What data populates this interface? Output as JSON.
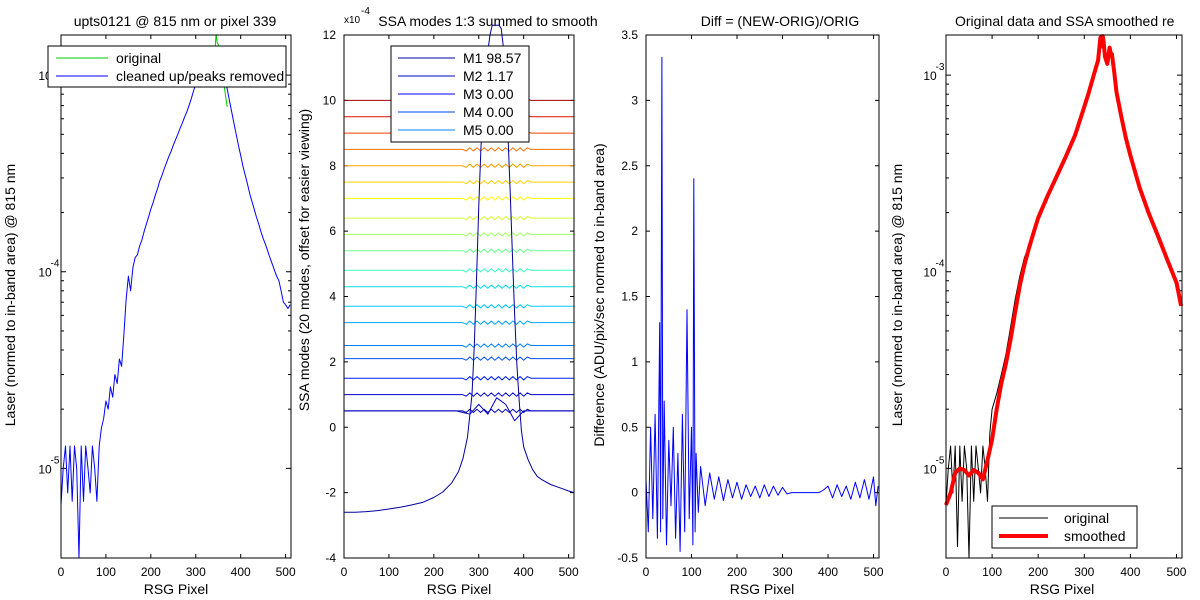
{
  "chart_data": [
    {
      "type": "line",
      "title": "upts0121 @ 815 nm or pixel 339",
      "xlabel": "RSG Pixel",
      "ylabel": "Laser (normed to in-band area) @ 815 nm",
      "xlim": [
        0,
        512
      ],
      "xticks": [
        0,
        100,
        200,
        300,
        400,
        500
      ],
      "ylim": [
        3.5e-06,
        0.0016
      ],
      "yscale": "log",
      "yticks": [
        {
          "v": 1e-05,
          "label": "10"
        },
        {
          "v": 0.0001,
          "label": "10"
        },
        {
          "v": 0.001,
          "label": "10"
        }
      ],
      "ytick_exponents": [
        "-5",
        "-4",
        "-3"
      ],
      "legend": {
        "placement": "top",
        "entries": [
          "original",
          "cleaned up/peaks removed"
        ]
      },
      "series": [
        {
          "name": "original",
          "color": "#00c800",
          "x": [
            330,
            335,
            340,
            343,
            345,
            346,
            347,
            348,
            350,
            352,
            355,
            358,
            360,
            362,
            365,
            368,
            370
          ],
          "values": [
            0.00109,
            0.0012,
            0.00132,
            0.00137,
            0.0016,
            0.0016,
            0.0015,
            0.00145,
            0.00144,
            0.00138,
            0.00128,
            0.00118,
            0.00106,
            0.00094,
            0.00082,
            0.00074,
            0.00069
          ]
        },
        {
          "name": "cleaned up/peaks removed",
          "color": "#0000ff",
          "x": [
            0,
            5,
            10,
            15,
            20,
            25,
            30,
            35,
            40,
            45,
            50,
            55,
            60,
            65,
            70,
            75,
            80,
            85,
            90,
            95,
            100,
            105,
            110,
            115,
            120,
            125,
            130,
            135,
            140,
            145,
            150,
            155,
            160,
            165,
            170,
            175,
            180,
            185,
            190,
            195,
            200,
            205,
            210,
            215,
            220,
            225,
            230,
            235,
            240,
            245,
            250,
            255,
            260,
            265,
            270,
            275,
            280,
            285,
            290,
            295,
            300,
            305,
            310,
            315,
            320,
            325,
            330,
            335,
            340,
            345,
            350,
            355,
            360,
            365,
            370,
            375,
            380,
            385,
            390,
            395,
            400,
            405,
            410,
            415,
            420,
            425,
            430,
            435,
            440,
            445,
            450,
            455,
            460,
            465,
            470,
            475,
            480,
            485,
            490,
            495,
            500,
            505,
            510
          ],
          "values": [
            6.5e-06,
            1e-05,
            1.3e-05,
            7.5e-06,
            1.3e-05,
            6.8e-06,
            1.3e-05,
            1e-05,
            3.5e-06,
            1.3e-05,
            6.8e-06,
            1.3e-05,
            1e-05,
            7.5e-06,
            1.3e-05,
            1e-05,
            6.8e-06,
            1.3e-05,
            1.6e-05,
            1.8e-05,
            2.2e-05,
            2e-05,
            2.6e-05,
            2.3e-05,
            3e-05,
            2.7e-05,
            3.6e-05,
            3.3e-05,
            4.8e-05,
            7.2e-05,
            9.5e-05,
            8e-05,
            0.000105,
            0.000118,
            0.000122,
            0.000135,
            0.000145,
            0.00016,
            0.000175,
            0.00019,
            0.000208,
            0.000225,
            0.000245,
            0.000265,
            0.00029,
            0.00031,
            0.000335,
            0.00036,
            0.000385,
            0.00041,
            0.00044,
            0.00047,
            0.0005,
            0.000535,
            0.00057,
            0.00061,
            0.00065,
            0.0007,
            0.00076,
            0.00083,
            0.0009,
            0.00097,
            0.00104,
            0.0011,
            0.00116,
            0.00121,
            0.00125,
            0.0013,
            0.00132,
            0.0013,
            0.00125,
            0.00118,
            0.00108,
            0.00096,
            0.00085,
            0.00074,
            0.00065,
            0.00057,
            0.0005,
            0.00044,
            0.00039,
            0.000345,
            0.00031,
            0.00028,
            0.00025,
            0.000228,
            0.000208,
            0.00019,
            0.000175,
            0.00016,
            0.000148,
            0.000138,
            0.000128,
            0.000118,
            0.00011,
            0.000102,
            9.5e-05,
            9e-05,
            8e-05,
            7e-05,
            6.8e-05,
            6.5e-05,
            6.8e-05
          ]
        }
      ]
    },
    {
      "type": "line",
      "title": "SSA modes 1:3 summed to smooth",
      "xlabel": "RSG Pixel",
      "ylabel": "SSA modes (20 modes, offset for easier viewing)",
      "axis_multiplier": {
        "base": "x10",
        "exponent": "-4"
      },
      "xlim": [
        0,
        512
      ],
      "xticks": [
        0,
        100,
        200,
        300,
        400,
        500
      ],
      "ylim": [
        -4,
        12
      ],
      "yticks": [
        -4,
        -2,
        0,
        2,
        4,
        6,
        8,
        10,
        12
      ],
      "legend": {
        "placement": "top",
        "entries": [
          {
            "label": "M1 98.57",
            "color": "#0000a0"
          },
          {
            "label": "M2 1.17",
            "color": "#0000c8"
          },
          {
            "label": "M3 0.00",
            "color": "#0000ff"
          },
          {
            "label": "M4 0.00",
            "color": "#0040ff"
          },
          {
            "label": "M5 0.00",
            "color": "#0080ff"
          }
        ]
      },
      "offset_mode_levels": [
        0.5,
        1.0,
        1.5,
        2.1,
        2.5,
        3.2,
        3.7,
        4.3,
        4.8,
        5.4,
        5.9,
        6.4,
        7.0,
        7.5,
        8.0,
        8.5,
        9.0,
        9.5,
        10.0
      ],
      "offset_mode_colors": [
        "#0000b0",
        "#0000d8",
        "#0020ff",
        "#0050ff",
        "#0080ff",
        "#00aaff",
        "#00ccff",
        "#10e0e0",
        "#40ffc0",
        "#70ff90",
        "#a0ff60",
        "#d0ff30",
        "#ffff00",
        "#ffd000",
        "#ffa000",
        "#ff7000",
        "#ff4000",
        "#e01000",
        "#a00000"
      ],
      "series": [
        {
          "name": "M1",
          "color": "#0000a0",
          "x": [
            0,
            25,
            50,
            75,
            100,
            125,
            150,
            175,
            200,
            220,
            240,
            255,
            265,
            275,
            285,
            290,
            295,
            300,
            305,
            310,
            315,
            320,
            325,
            330,
            335,
            340,
            345,
            350,
            355,
            360,
            365,
            370,
            375,
            380,
            385,
            390,
            395,
            400,
            410,
            420,
            430,
            440,
            460,
            480,
            500,
            512
          ],
          "values": [
            -2.6,
            -2.6,
            -2.58,
            -2.55,
            -2.5,
            -2.45,
            -2.38,
            -2.3,
            -2.15,
            -1.98,
            -1.7,
            -1.35,
            -0.95,
            -0.3,
            1.0,
            2.5,
            4.5,
            6.8,
            8.6,
            9.6,
            10.6,
            11.5,
            12.0,
            12.3,
            12.3,
            12.3,
            12.3,
            12.2,
            11.6,
            10.4,
            8.9,
            7.2,
            5.2,
            3.4,
            1.9,
            0.8,
            -0.1,
            -0.6,
            -1.0,
            -1.3,
            -1.5,
            -1.6,
            -1.75,
            -1.85,
            -1.95,
            -2.0
          ]
        },
        {
          "name": "M2",
          "color": "#0000c8",
          "x": [
            0,
            100,
            200,
            250,
            280,
            300,
            320,
            340,
            360,
            380,
            400,
            450,
            512
          ],
          "values": [
            0.5,
            0.5,
            0.5,
            0.5,
            0.4,
            0.7,
            0.4,
            0.9,
            0.7,
            0.2,
            0.5,
            0.5,
            0.5
          ]
        }
      ]
    },
    {
      "type": "line",
      "title": "Diff = (NEW-ORIG)/ORIG",
      "xlabel": "RSG Pixel",
      "ylabel": "Difference (ADU/pix/sec normed to in-band area)",
      "xlim": [
        0,
        512
      ],
      "xticks": [
        0,
        100,
        200,
        300,
        400,
        500
      ],
      "ylim": [
        -0.5,
        3.5
      ],
      "yticks": [
        -0.5,
        0,
        0.5,
        1,
        1.5,
        2,
        2.5,
        3,
        3.5
      ],
      "series": [
        {
          "name": "",
          "color": "#0000ff",
          "x": [
            0,
            5,
            10,
            15,
            20,
            25,
            30,
            32,
            35,
            37,
            40,
            45,
            50,
            55,
            60,
            65,
            70,
            75,
            80,
            85,
            90,
            95,
            100,
            103,
            105,
            108,
            110,
            115,
            120,
            130,
            140,
            150,
            160,
            170,
            180,
            190,
            200,
            210,
            220,
            230,
            240,
            250,
            260,
            270,
            280,
            290,
            300,
            310,
            320,
            330,
            340,
            350,
            360,
            370,
            380,
            390,
            400,
            410,
            420,
            430,
            440,
            450,
            460,
            470,
            480,
            490,
            500,
            505,
            510
          ],
          "values": [
            0.1,
            -0.3,
            0.5,
            -0.2,
            0.6,
            -0.35,
            1.3,
            -0.3,
            3.33,
            -0.2,
            0.7,
            -0.4,
            0.4,
            -0.1,
            0.5,
            -0.35,
            0.3,
            -0.45,
            0.6,
            -0.3,
            1.4,
            -0.2,
            0.5,
            -0.4,
            2.4,
            -0.3,
            0.3,
            -0.15,
            0.2,
            -0.1,
            0.15,
            -0.05,
            0.12,
            -0.06,
            0.1,
            -0.04,
            0.08,
            -0.05,
            0.06,
            -0.03,
            0.05,
            -0.04,
            0.06,
            -0.03,
            0.05,
            -0.02,
            0.04,
            -0.01,
            0.0,
            0.0,
            0.0,
            0.0,
            0.0,
            0.0,
            0.0,
            0.02,
            0.05,
            -0.04,
            0.06,
            -0.03,
            0.05,
            -0.05,
            0.08,
            -0.04,
            0.1,
            -0.05,
            0.12,
            -0.1,
            0.05
          ]
        }
      ]
    },
    {
      "type": "line",
      "title": "Original data and SSA smoothed re",
      "xlabel": "RSG Pixel",
      "ylabel": "Laser (normed to in-band area) @ 815 nm",
      "xlim": [
        0,
        512
      ],
      "xticks": [
        0,
        100,
        200,
        300,
        400,
        500
      ],
      "ylim": [
        3.5e-06,
        0.0016
      ],
      "yscale": "log",
      "yticks": [
        {
          "v": 1e-05,
          "label": "10"
        },
        {
          "v": 0.0001,
          "label": "10"
        },
        {
          "v": 0.001,
          "label": "10"
        }
      ],
      "ytick_exponents": [
        "-5",
        "-4",
        "-3"
      ],
      "legend": {
        "placement": "bottom",
        "entries": [
          "original",
          "smoothed"
        ]
      },
      "series": [
        {
          "name": "original",
          "color": "#000000",
          "x": [
            0,
            5,
            10,
            15,
            20,
            25,
            30,
            35,
            40,
            45,
            50,
            55,
            60,
            65,
            70,
            75,
            80,
            85,
            90,
            95,
            100,
            110,
            120,
            130,
            140,
            150,
            160,
            170,
            180,
            190,
            200,
            220,
            240,
            260,
            280,
            300,
            310,
            320,
            330,
            335,
            338,
            340,
            342,
            345,
            350,
            355,
            358,
            360,
            365,
            370,
            380,
            390,
            400,
            420,
            440,
            460,
            480,
            500,
            510
          ],
          "values": [
            6.5e-06,
            1e-05,
            1.3e-05,
            7.5e-06,
            1.3e-05,
            4e-06,
            1.3e-05,
            6.8e-06,
            1.3e-05,
            1e-05,
            3.5e-06,
            1.3e-05,
            6.8e-06,
            1.3e-05,
            1e-05,
            7.5e-06,
            1.3e-05,
            1e-05,
            6.8e-06,
            1.5e-05,
            2e-05,
            2.4e-05,
            3e-05,
            3.8e-05,
            5.2e-05,
            7.2e-05,
            9.5e-05,
            0.000118,
            0.000135,
            0.00016,
            0.00019,
            0.000245,
            0.00031,
            0.00039,
            0.0005,
            0.0007,
            0.00083,
            0.001,
            0.0012,
            0.0016,
            0.0014,
            0.0016,
            0.0015,
            0.00125,
            0.00115,
            0.0014,
            0.00128,
            0.0013,
            0.00105,
            0.00082,
            0.00062,
            0.00048,
            0.00039,
            0.00027,
            0.0002,
            0.000155,
            0.000118,
            9e-05,
            6.8e-05
          ]
        },
        {
          "name": "smoothed",
          "color": "#ff0000",
          "x": [
            0,
            10,
            20,
            30,
            40,
            50,
            60,
            70,
            80,
            90,
            100,
            110,
            120,
            130,
            140,
            150,
            160,
            170,
            180,
            190,
            200,
            220,
            240,
            260,
            280,
            300,
            310,
            320,
            330,
            335,
            338,
            340,
            342,
            345,
            350,
            355,
            358,
            360,
            365,
            370,
            380,
            390,
            400,
            420,
            440,
            460,
            480,
            500,
            510
          ],
          "values": [
            6.5e-06,
            7.5e-06,
            9.5e-06,
            1e-05,
            9.8e-06,
            9.2e-06,
            9.8e-06,
            9.5e-06,
            8.8e-06,
            1.1e-05,
            1.4e-05,
            2e-05,
            2.7e-05,
            3.4e-05,
            4.5e-05,
            6.2e-05,
            8.5e-05,
            0.000108,
            0.000132,
            0.000158,
            0.000188,
            0.000242,
            0.000305,
            0.000385,
            0.000495,
            0.00069,
            0.00082,
            0.00099,
            0.00119,
            0.00155,
            0.0014,
            0.00158,
            0.00148,
            0.00124,
            0.00114,
            0.00138,
            0.00127,
            0.00128,
            0.00104,
            0.00082,
            0.00062,
            0.00048,
            0.00039,
            0.000268,
            0.000198,
            0.000152,
            0.000115,
            8.8e-05,
            6.7e-05
          ]
        }
      ]
    }
  ]
}
